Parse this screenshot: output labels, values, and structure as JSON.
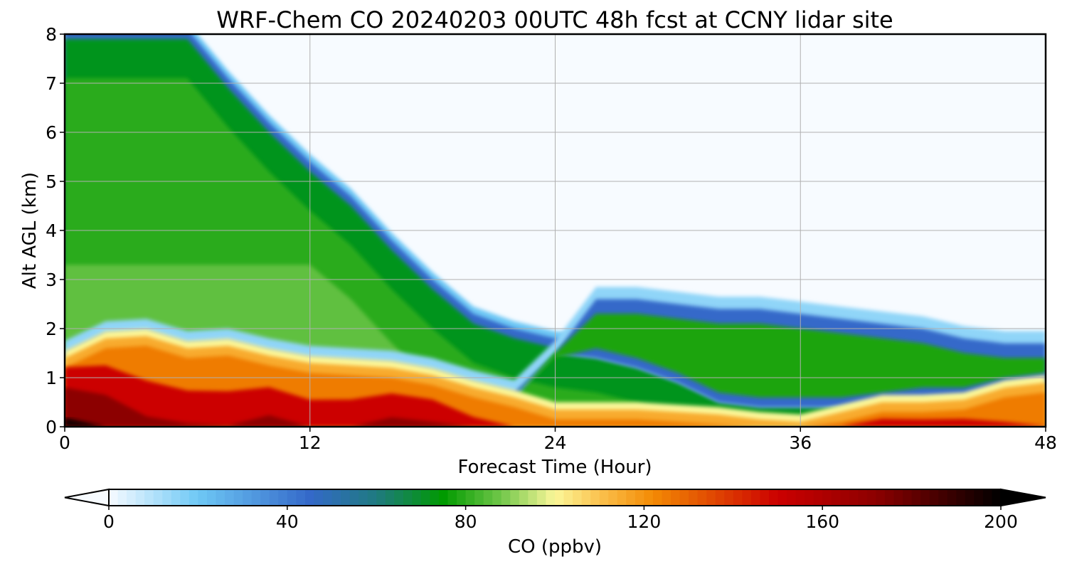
{
  "chart_data": {
    "type": "heatmap",
    "title": "WRF-Chem CO  20240203 00UTC 48h fcst at CCNY lidar site",
    "xlabel": "Forecast Time (Hour)",
    "ylabel": "Alt AGL (km)",
    "xlim": [
      0,
      48
    ],
    "ylim": [
      0,
      8
    ],
    "x_ticks": [
      0,
      12,
      24,
      36,
      48
    ],
    "y_ticks": [
      0,
      1,
      2,
      3,
      4,
      5,
      6,
      7,
      8
    ],
    "grid": true,
    "colorbar": {
      "label": "CO  (ppbv)",
      "range": [
        0,
        200
      ],
      "ticks": [
        0,
        40,
        80,
        120,
        160,
        200
      ],
      "extend": "both",
      "colorscale": [
        {
          "value": 0,
          "color": "#f7fbff"
        },
        {
          "value": 20,
          "color": "#6ec8f5"
        },
        {
          "value": 45,
          "color": "#3469c9"
        },
        {
          "value": 60,
          "color": "#1f7a80"
        },
        {
          "value": 75,
          "color": "#009a00"
        },
        {
          "value": 88,
          "color": "#72c74a"
        },
        {
          "value": 100,
          "color": "#fbf79a"
        },
        {
          "value": 110,
          "color": "#fbc24e"
        },
        {
          "value": 122,
          "color": "#f38a04"
        },
        {
          "value": 150,
          "color": "#cc0000"
        },
        {
          "value": 172,
          "color": "#8c0000"
        },
        {
          "value": 200,
          "color": "#000000"
        }
      ]
    },
    "profile_times_hour": [
      0,
      2,
      4,
      6,
      8,
      10,
      12,
      14,
      16,
      18,
      20,
      22,
      24,
      26,
      28,
      30,
      32,
      34,
      36,
      38,
      40,
      42,
      44,
      46,
      48
    ],
    "upper_plume_top_km": [
      8.0,
      8.0,
      8.0,
      8.0,
      7.0,
      6.1,
      5.3,
      4.6,
      3.7,
      2.9,
      2.2,
      1.9,
      1.7,
      1.6,
      1.4,
      1.1,
      0.7,
      0.6,
      0.6,
      0.6,
      0.7,
      0.8,
      0.8,
      0.9,
      1.0
    ],
    "elevated_layer_top_km": [
      null,
      null,
      null,
      null,
      null,
      null,
      null,
      null,
      null,
      null,
      null,
      null,
      1.4,
      2.5,
      2.5,
      2.4,
      2.3,
      2.3,
      2.2,
      2.1,
      2.0,
      1.9,
      1.7,
      1.6,
      1.6
    ],
    "boundary_layer_top_km": [
      1.4,
      1.8,
      1.85,
      1.6,
      1.65,
      1.45,
      1.3,
      1.25,
      1.2,
      1.05,
      0.8,
      0.6,
      0.35,
      0.35,
      0.35,
      0.3,
      0.25,
      0.15,
      0.1,
      0.3,
      0.5,
      0.5,
      0.55,
      0.8,
      0.9
    ],
    "surface_max_co_ppbv": [
      195,
      180,
      165,
      162,
      160,
      170,
      160,
      162,
      172,
      170,
      150,
      130,
      118,
      118,
      112,
      108,
      105,
      100,
      98,
      150,
      162,
      160,
      158,
      140,
      130
    ]
  }
}
